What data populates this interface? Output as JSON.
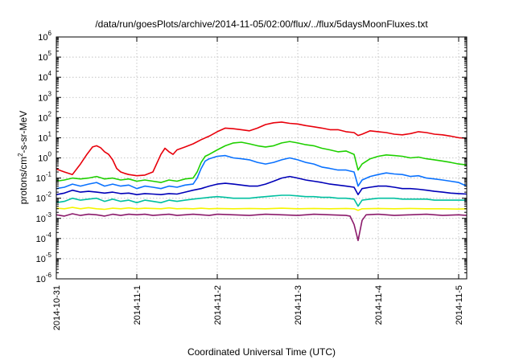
{
  "chart_data": {
    "type": "line",
    "title": "/data/run/goesPlots/archive/2014-11-05/02:00/flux/../flux/5daysMoonFluxes.txt",
    "xlabel": "Coordinated Universal Time (UTC)",
    "ylabel": {
      "prefix": "protons/cm",
      "sup": "2",
      "suffix": "-s-sr-MeV"
    },
    "y_scale": "log",
    "ylim": [
      1e-06,
      1000000.0
    ],
    "xlim": [
      0,
      5.1
    ],
    "grid": true,
    "x_ticks": [
      {
        "value": 0,
        "label": "2014-10-31"
      },
      {
        "value": 1,
        "label": "2014-11-1"
      },
      {
        "value": 2,
        "label": "2014-11-2"
      },
      {
        "value": 3,
        "label": "2014-11-3"
      },
      {
        "value": 4,
        "label": "2014-11-4"
      },
      {
        "value": 5,
        "label": "2014-11-5"
      }
    ],
    "y_ticks": [
      {
        "value": 1e-06,
        "base": "10",
        "exp": "-6"
      },
      {
        "value": 1e-05,
        "base": "10",
        "exp": "-5"
      },
      {
        "value": 0.0001,
        "base": "10",
        "exp": "-4"
      },
      {
        "value": 0.001,
        "base": "10",
        "exp": "-3"
      },
      {
        "value": 0.01,
        "base": "10",
        "exp": "-2"
      },
      {
        "value": 0.1,
        "base": "10",
        "exp": "-1"
      },
      {
        "value": 1,
        "base": "10",
        "exp": "0"
      },
      {
        "value": 10,
        "base": "10",
        "exp": "1"
      },
      {
        "value": 100,
        "base": "10",
        "exp": "2"
      },
      {
        "value": 1000,
        "base": "10",
        "exp": "3"
      },
      {
        "value": 10000,
        "base": "10",
        "exp": "4"
      },
      {
        "value": 100000,
        "base": "10",
        "exp": "5"
      },
      {
        "value": 1000000,
        "base": "10",
        "exp": "6"
      }
    ],
    "series": [
      {
        "color": "#e8000b",
        "x": [
          0,
          0.1,
          0.2,
          0.3,
          0.38,
          0.45,
          0.5,
          0.55,
          0.6,
          0.65,
          0.7,
          0.75,
          0.8,
          0.85,
          0.9,
          1.0,
          1.1,
          1.2,
          1.3,
          1.35,
          1.4,
          1.45,
          1.5,
          1.6,
          1.7,
          1.8,
          1.9,
          2.0,
          2.1,
          2.2,
          2.3,
          2.4,
          2.5,
          2.6,
          2.7,
          2.8,
          2.9,
          3.0,
          3.1,
          3.2,
          3.3,
          3.4,
          3.5,
          3.6,
          3.7,
          3.75,
          3.8,
          3.9,
          4.0,
          4.1,
          4.2,
          4.3,
          4.4,
          4.5,
          4.6,
          4.7,
          4.8,
          4.9,
          5.0,
          5.1
        ],
        "y": [
          0.28,
          0.2,
          0.15,
          0.5,
          1.5,
          3.5,
          4.0,
          3.2,
          2.0,
          1.5,
          0.8,
          0.3,
          0.2,
          0.17,
          0.15,
          0.13,
          0.14,
          0.2,
          1.5,
          3.0,
          2.0,
          1.5,
          2.5,
          3.5,
          5.0,
          8,
          12,
          20,
          30,
          28,
          25,
          22,
          30,
          45,
          55,
          60,
          52,
          48,
          40,
          35,
          30,
          25,
          25,
          20,
          18,
          13,
          15,
          22,
          20,
          18,
          15,
          14,
          16,
          20,
          18,
          15,
          14,
          12,
          10,
          9.5
        ]
      },
      {
        "color": "#1fd000",
        "x": [
          0,
          0.1,
          0.2,
          0.3,
          0.4,
          0.5,
          0.6,
          0.7,
          0.8,
          0.9,
          1.0,
          1.1,
          1.2,
          1.3,
          1.4,
          1.5,
          1.6,
          1.7,
          1.75,
          1.8,
          1.85,
          1.9,
          2.0,
          2.1,
          2.2,
          2.3,
          2.4,
          2.5,
          2.6,
          2.7,
          2.8,
          2.9,
          3.0,
          3.1,
          3.2,
          3.3,
          3.4,
          3.5,
          3.6,
          3.7,
          3.75,
          3.8,
          3.9,
          4.0,
          4.1,
          4.2,
          4.3,
          4.4,
          4.5,
          4.6,
          4.7,
          4.8,
          4.9,
          5.0,
          5.1
        ],
        "y": [
          0.07,
          0.08,
          0.1,
          0.09,
          0.1,
          0.12,
          0.09,
          0.1,
          0.08,
          0.09,
          0.07,
          0.08,
          0.07,
          0.06,
          0.08,
          0.07,
          0.09,
          0.1,
          0.2,
          0.6,
          1.2,
          1.5,
          2.5,
          4.0,
          5.5,
          6.0,
          5.0,
          4.0,
          3.5,
          4.0,
          5.5,
          6.5,
          5.5,
          4.5,
          4.0,
          3.0,
          2.5,
          2.0,
          2.2,
          1.5,
          0.25,
          0.5,
          0.9,
          1.2,
          1.4,
          1.3,
          1.2,
          1.0,
          1.1,
          0.9,
          0.8,
          0.7,
          0.6,
          0.5,
          0.45
        ]
      },
      {
        "color": "#0a72ff",
        "x": [
          0,
          0.1,
          0.2,
          0.3,
          0.4,
          0.5,
          0.6,
          0.7,
          0.8,
          0.9,
          1.0,
          1.1,
          1.2,
          1.3,
          1.4,
          1.5,
          1.6,
          1.7,
          1.75,
          1.8,
          1.85,
          1.9,
          2.0,
          2.1,
          2.2,
          2.3,
          2.4,
          2.5,
          2.6,
          2.7,
          2.8,
          2.9,
          3.0,
          3.1,
          3.2,
          3.3,
          3.4,
          3.5,
          3.6,
          3.7,
          3.75,
          3.8,
          3.9,
          4.0,
          4.1,
          4.2,
          4.3,
          4.4,
          4.5,
          4.6,
          4.7,
          4.8,
          4.9,
          5.0,
          5.1
        ],
        "y": [
          0.03,
          0.035,
          0.05,
          0.04,
          0.05,
          0.06,
          0.04,
          0.05,
          0.04,
          0.045,
          0.03,
          0.04,
          0.035,
          0.03,
          0.04,
          0.035,
          0.045,
          0.05,
          0.1,
          0.3,
          0.7,
          0.9,
          1.2,
          1.3,
          1.0,
          0.9,
          0.8,
          0.6,
          0.5,
          0.6,
          0.8,
          1.0,
          0.8,
          0.6,
          0.5,
          0.35,
          0.3,
          0.25,
          0.25,
          0.2,
          0.04,
          0.08,
          0.12,
          0.15,
          0.18,
          0.16,
          0.15,
          0.12,
          0.13,
          0.1,
          0.09,
          0.08,
          0.07,
          0.06,
          0.04
        ]
      },
      {
        "color": "#0000b8",
        "x": [
          0,
          0.1,
          0.2,
          0.3,
          0.4,
          0.5,
          0.6,
          0.7,
          0.8,
          0.9,
          1.0,
          1.1,
          1.2,
          1.3,
          1.4,
          1.5,
          1.6,
          1.7,
          1.8,
          1.9,
          2.0,
          2.1,
          2.2,
          2.3,
          2.4,
          2.5,
          2.6,
          2.7,
          2.8,
          2.9,
          3.0,
          3.1,
          3.2,
          3.3,
          3.4,
          3.5,
          3.6,
          3.7,
          3.75,
          3.8,
          3.9,
          4.0,
          4.1,
          4.2,
          4.3,
          4.4,
          4.5,
          4.6,
          4.7,
          4.8,
          4.9,
          5.0,
          5.1
        ],
        "y": [
          0.015,
          0.018,
          0.025,
          0.02,
          0.022,
          0.02,
          0.018,
          0.02,
          0.017,
          0.018,
          0.015,
          0.017,
          0.016,
          0.015,
          0.017,
          0.016,
          0.02,
          0.025,
          0.03,
          0.04,
          0.05,
          0.055,
          0.05,
          0.045,
          0.04,
          0.04,
          0.05,
          0.07,
          0.1,
          0.12,
          0.1,
          0.08,
          0.07,
          0.06,
          0.05,
          0.045,
          0.04,
          0.035,
          0.015,
          0.03,
          0.035,
          0.04,
          0.04,
          0.035,
          0.03,
          0.03,
          0.028,
          0.025,
          0.022,
          0.02,
          0.018,
          0.017,
          0.016
        ]
      },
      {
        "color": "#00c0a0",
        "x": [
          0,
          0.1,
          0.2,
          0.3,
          0.4,
          0.5,
          0.6,
          0.7,
          0.8,
          0.9,
          1.0,
          1.1,
          1.2,
          1.3,
          1.4,
          1.5,
          1.6,
          1.7,
          1.8,
          1.9,
          2.0,
          2.1,
          2.2,
          2.3,
          2.4,
          2.5,
          2.6,
          2.7,
          2.8,
          2.9,
          3.0,
          3.1,
          3.2,
          3.3,
          3.4,
          3.5,
          3.6,
          3.7,
          3.75,
          3.8,
          3.9,
          4.0,
          4.1,
          4.2,
          4.3,
          4.4,
          4.5,
          4.6,
          4.7,
          4.8,
          4.9,
          5.0,
          5.1
        ],
        "y": [
          0.006,
          0.007,
          0.01,
          0.008,
          0.009,
          0.01,
          0.007,
          0.009,
          0.007,
          0.008,
          0.006,
          0.008,
          0.007,
          0.006,
          0.008,
          0.007,
          0.008,
          0.009,
          0.01,
          0.011,
          0.012,
          0.011,
          0.01,
          0.01,
          0.01,
          0.011,
          0.012,
          0.013,
          0.014,
          0.014,
          0.013,
          0.012,
          0.012,
          0.011,
          0.011,
          0.01,
          0.01,
          0.009,
          0.004,
          0.008,
          0.009,
          0.01,
          0.01,
          0.01,
          0.009,
          0.009,
          0.009,
          0.009,
          0.008,
          0.008,
          0.008,
          0.008,
          0.008
        ]
      },
      {
        "color": "#f5f500",
        "x": [
          0,
          0.1,
          0.2,
          0.3,
          0.4,
          0.5,
          0.6,
          0.7,
          0.8,
          0.9,
          1.0,
          1.1,
          1.2,
          1.3,
          1.4,
          1.5,
          1.6,
          1.7,
          1.8,
          1.9,
          2.0,
          2.2,
          2.4,
          2.6,
          2.8,
          3.0,
          3.2,
          3.4,
          3.6,
          3.7,
          3.75,
          3.8,
          4.0,
          4.2,
          4.4,
          4.6,
          4.8,
          5.0,
          5.1
        ],
        "y": [
          0.0032,
          0.003,
          0.0035,
          0.003,
          0.0034,
          0.003,
          0.0028,
          0.0032,
          0.003,
          0.0033,
          0.003,
          0.0032,
          0.0031,
          0.003,
          0.0033,
          0.003,
          0.0031,
          0.003,
          0.0032,
          0.003,
          0.0031,
          0.003,
          0.0031,
          0.003,
          0.0032,
          0.003,
          0.0031,
          0.003,
          0.0031,
          0.003,
          0.0025,
          0.003,
          0.0031,
          0.003,
          0.0031,
          0.003,
          0.003,
          0.0029,
          0.003
        ]
      },
      {
        "color": "#8b1a6b",
        "x": [
          0,
          0.1,
          0.2,
          0.3,
          0.4,
          0.5,
          0.6,
          0.7,
          0.8,
          0.9,
          1.0,
          1.1,
          1.2,
          1.3,
          1.4,
          1.5,
          1.6,
          1.7,
          1.8,
          1.9,
          2.0,
          2.2,
          2.4,
          2.6,
          2.8,
          3.0,
          3.2,
          3.4,
          3.6,
          3.65,
          3.7,
          3.75,
          3.8,
          3.85,
          4.0,
          4.2,
          4.4,
          4.6,
          4.8,
          5.0,
          5.1
        ],
        "y": [
          0.0015,
          0.0013,
          0.0017,
          0.0014,
          0.0016,
          0.0015,
          0.0013,
          0.0016,
          0.0014,
          0.0016,
          0.0015,
          0.0016,
          0.0014,
          0.0015,
          0.0016,
          0.0014,
          0.0015,
          0.0016,
          0.0015,
          0.0014,
          0.0016,
          0.0015,
          0.0014,
          0.0016,
          0.0015,
          0.0014,
          0.0016,
          0.0015,
          0.0014,
          0.0013,
          0.0005,
          8e-05,
          0.0008,
          0.0015,
          0.0016,
          0.0014,
          0.0015,
          0.0016,
          0.0014,
          0.0015,
          0.0014
        ]
      }
    ]
  }
}
